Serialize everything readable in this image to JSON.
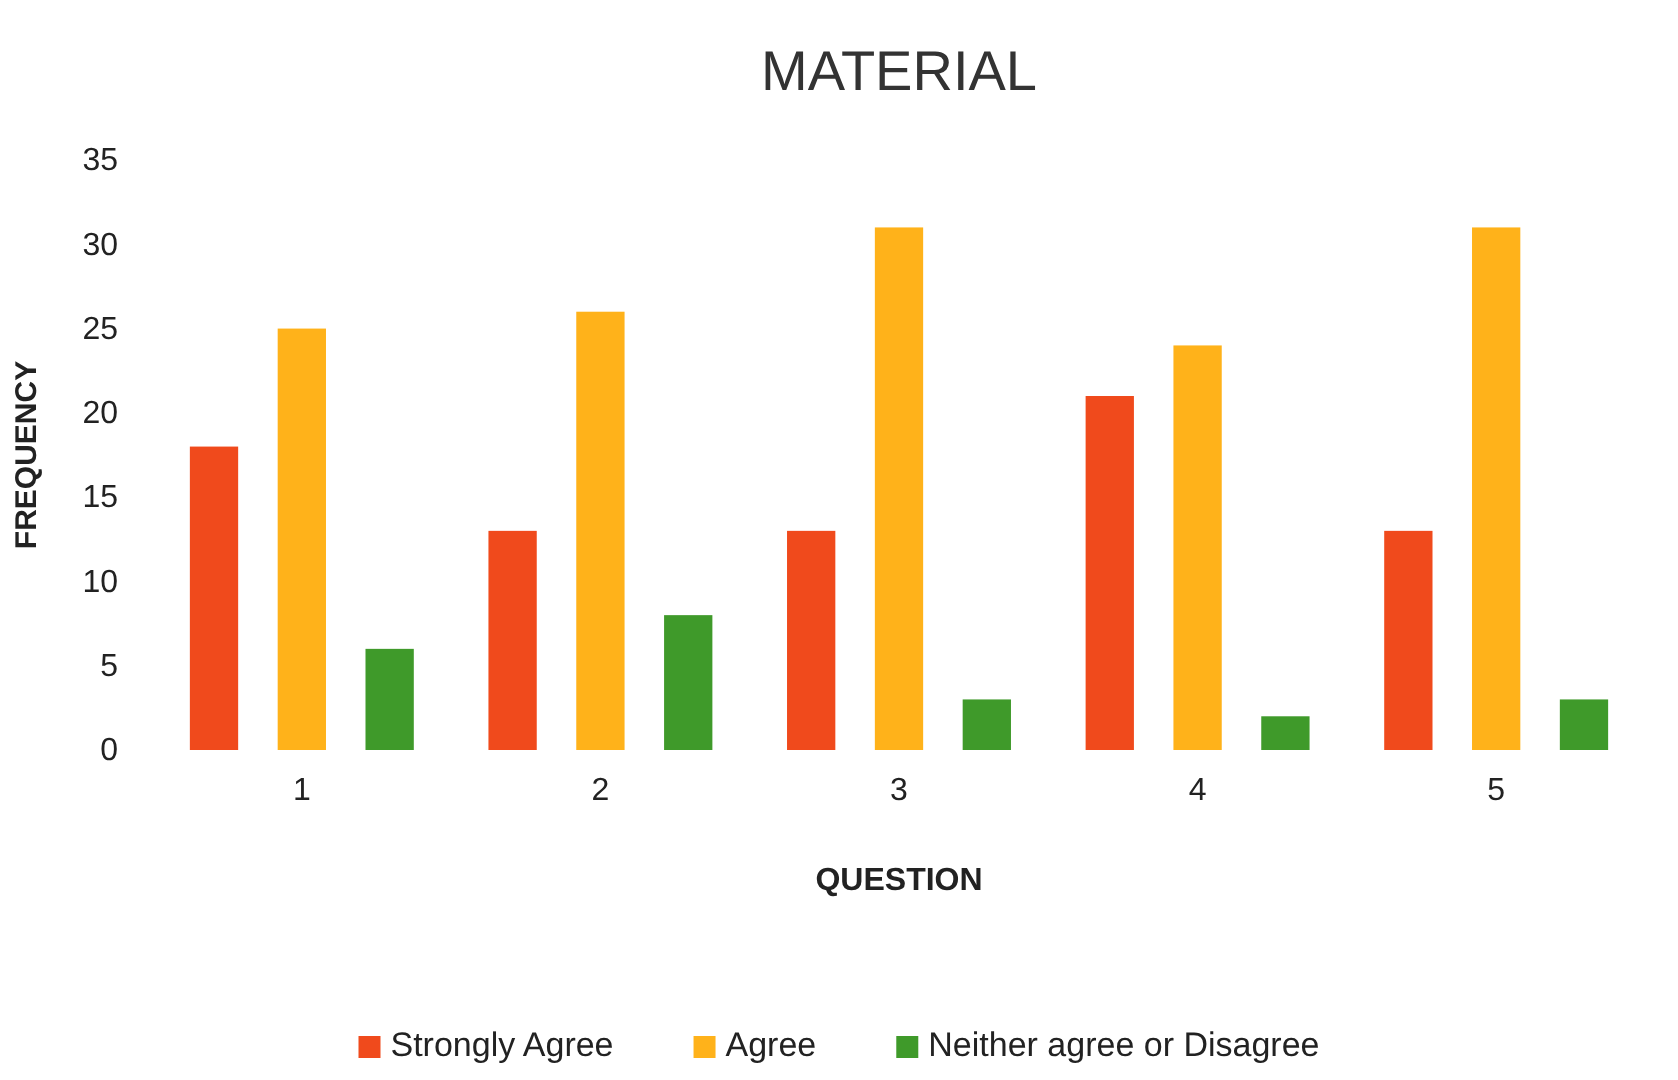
{
  "chart_data": {
    "type": "bar",
    "title": "MATERIAL",
    "xlabel": "QUESTION",
    "ylabel": "FREQUENCY",
    "categories": [
      "1",
      "2",
      "3",
      "4",
      "5"
    ],
    "series": [
      {
        "name": "Strongly Agree",
        "color": "#f04a1c",
        "values": [
          18,
          13,
          13,
          21,
          13
        ]
      },
      {
        "name": "Agree",
        "color": "#ffb21a",
        "values": [
          25,
          26,
          31,
          24,
          31
        ]
      },
      {
        "name": "Neither agree or Disagree",
        "color": "#3f9a2a",
        "values": [
          6,
          8,
          3,
          2,
          3
        ]
      }
    ],
    "ylim": [
      0,
      35
    ],
    "yticks": [
      0,
      5,
      10,
      15,
      20,
      25,
      30,
      35
    ],
    "legend": "bottom"
  }
}
